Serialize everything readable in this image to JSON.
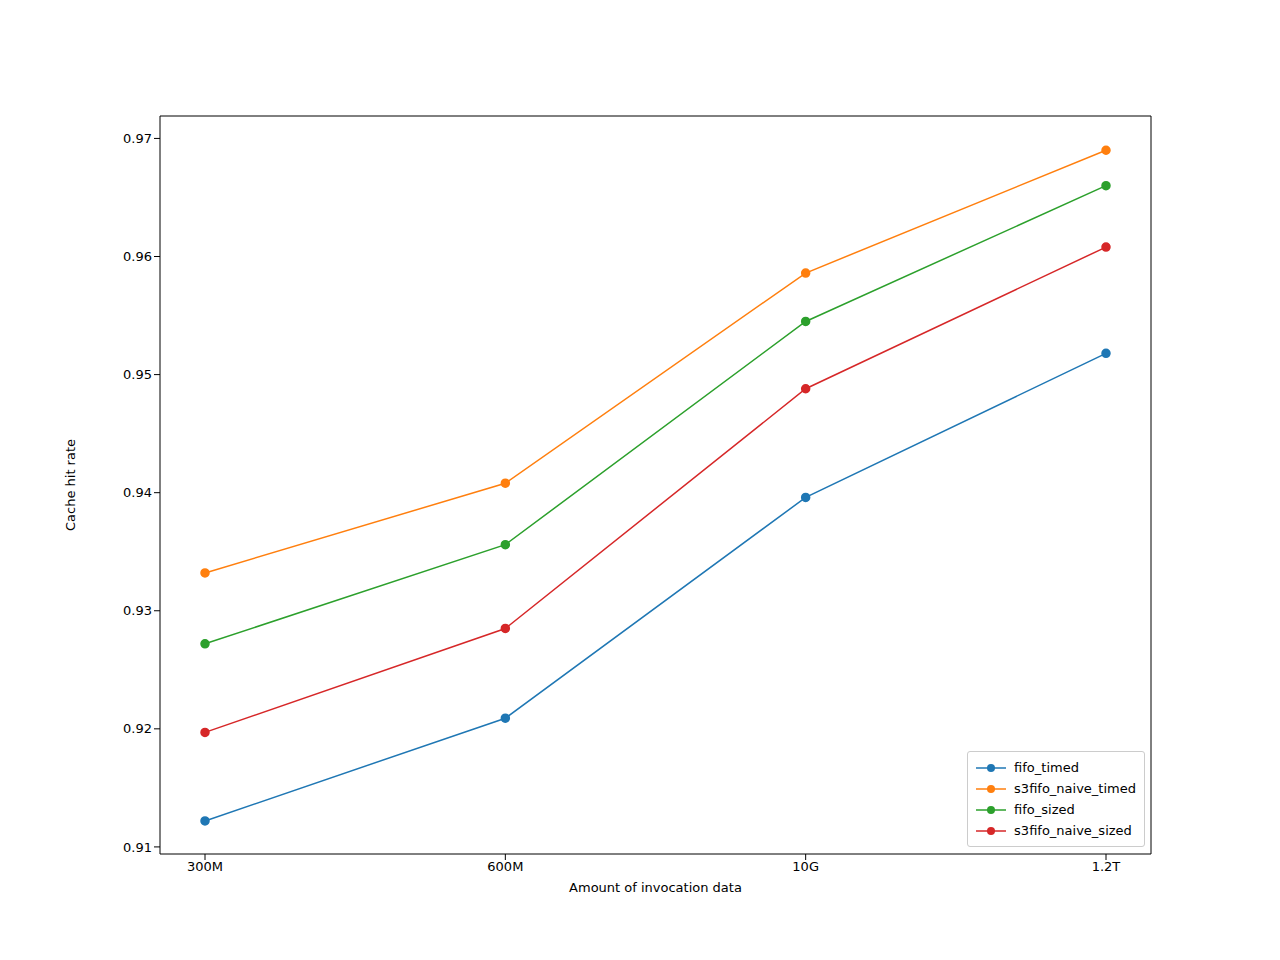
{
  "chart_data": {
    "type": "line",
    "x_label": "Amount of invocation data",
    "y_label": "Cache hit rate",
    "categories": [
      "300M",
      "600M",
      "10G",
      "1.2T"
    ],
    "series": [
      {
        "name": "fifo_timed",
        "color": "#1f77b4",
        "values": [
          0.9122,
          0.9209,
          0.9396,
          0.9518
        ]
      },
      {
        "name": "s3fifo_naive_timed",
        "color": "#ff7f0e",
        "values": [
          0.9332,
          0.9408,
          0.9586,
          0.969
        ]
      },
      {
        "name": "fifo_sized",
        "color": "#2ca02c",
        "values": [
          0.9272,
          0.9356,
          0.9545,
          0.966
        ]
      },
      {
        "name": "s3fifo_naive_sized",
        "color": "#d62728",
        "values": [
          0.9197,
          0.9285,
          0.9488,
          0.9608
        ]
      }
    ],
    "ylim": [
      0.9094,
      0.9719
    ],
    "yticks": [
      0.91,
      0.92,
      0.93,
      0.94,
      0.95,
      0.96,
      0.97
    ],
    "legend": "lower right",
    "marker": "circle",
    "grid": false
  }
}
